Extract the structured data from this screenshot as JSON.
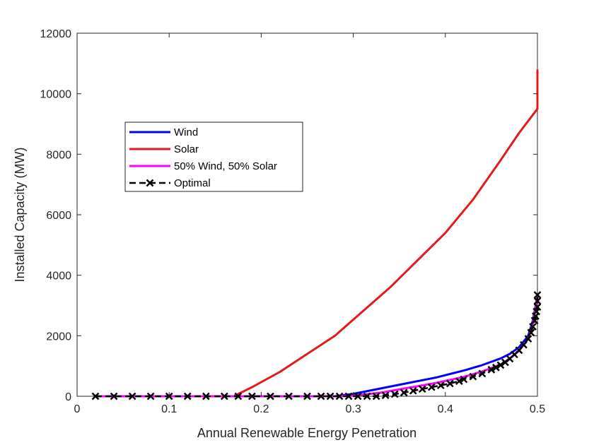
{
  "chart_data": {
    "type": "line",
    "xlabel": "Annual Renewable Energy Penetration",
    "ylabel": "Installed Capacity (MW)",
    "xlim": [
      0,
      0.5
    ],
    "ylim": [
      0,
      12000
    ],
    "xticks": [
      0,
      0.1,
      0.2,
      0.3,
      0.4,
      0.5
    ],
    "xtick_labels": [
      "0",
      "0.1",
      "0.2",
      "0.3",
      "0.4",
      "0.5"
    ],
    "yticks": [
      0,
      2000,
      4000,
      6000,
      8000,
      10000,
      12000
    ],
    "ytick_labels": [
      "0",
      "2000",
      "4000",
      "6000",
      "8000",
      "10000",
      "12000"
    ],
    "grid": false,
    "legend_position": "upper-left",
    "series": [
      {
        "name": "Wind",
        "color": "#0000ff",
        "style": "solid",
        "marker": "none",
        "x": [
          0.02,
          0.1,
          0.2,
          0.28,
          0.3,
          0.33,
          0.36,
          0.39,
          0.42,
          0.44,
          0.46,
          0.47,
          0.48,
          0.49,
          0.495,
          0.5
        ],
        "y": [
          0,
          0,
          0,
          0,
          80,
          260,
          440,
          620,
          850,
          1030,
          1250,
          1400,
          1620,
          2000,
          2500,
          3300
        ]
      },
      {
        "name": "Solar",
        "color": "#e31a1c",
        "style": "solid",
        "marker": "none",
        "x": [
          0.02,
          0.1,
          0.17,
          0.19,
          0.22,
          0.25,
          0.28,
          0.31,
          0.34,
          0.37,
          0.4,
          0.43,
          0.46,
          0.48,
          0.49,
          0.5,
          0.5
        ],
        "y": [
          0,
          0,
          0,
          300,
          800,
          1400,
          2000,
          2800,
          3600,
          4500,
          5400,
          6500,
          7800,
          8700,
          9100,
          9500,
          10800
        ]
      },
      {
        "name": "50% Wind, 50% Solar",
        "color": "#ff00ff",
        "style": "solid",
        "marker": "none",
        "x": [
          0.02,
          0.1,
          0.2,
          0.28,
          0.3,
          0.33,
          0.36,
          0.39,
          0.42,
          0.44,
          0.46,
          0.47,
          0.48,
          0.49,
          0.495,
          0.5
        ],
        "y": [
          0,
          0,
          0,
          0,
          20,
          120,
          280,
          440,
          640,
          820,
          1050,
          1250,
          1500,
          1900,
          2400,
          3300
        ]
      },
      {
        "name": "Optimal",
        "color": "#000000",
        "style": "dashed",
        "marker": "x",
        "x": [
          0.02,
          0.04,
          0.06,
          0.08,
          0.1,
          0.12,
          0.14,
          0.16,
          0.175,
          0.19,
          0.21,
          0.23,
          0.25,
          0.265,
          0.275,
          0.285,
          0.295,
          0.305,
          0.315,
          0.325,
          0.335,
          0.345,
          0.355,
          0.365,
          0.375,
          0.385,
          0.395,
          0.405,
          0.415,
          0.42,
          0.43,
          0.44,
          0.45,
          0.455,
          0.46,
          0.465,
          0.47,
          0.475,
          0.48,
          0.485,
          0.49,
          0.493,
          0.495,
          0.497,
          0.498,
          0.499,
          0.5,
          0.5,
          0.5
        ],
        "y": [
          0,
          0,
          0,
          0,
          0,
          0,
          0,
          0,
          0,
          0,
          0,
          0,
          0,
          0,
          0,
          0,
          0,
          0,
          0,
          0,
          30,
          70,
          120,
          180,
          240,
          300,
          360,
          420,
          500,
          560,
          650,
          750,
          880,
          950,
          1030,
          1120,
          1240,
          1380,
          1520,
          1700,
          1900,
          2100,
          2300,
          2500,
          2650,
          2800,
          2950,
          3150,
          3350
        ]
      }
    ]
  }
}
